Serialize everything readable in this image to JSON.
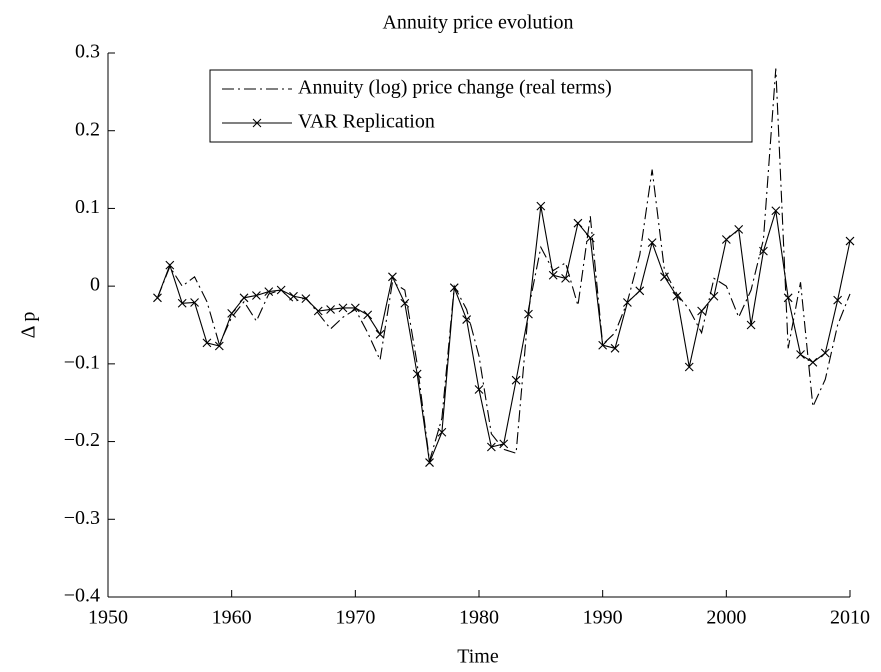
{
  "chart_data": {
    "type": "line",
    "title": "Annuity price evolution",
    "x_label": "Time",
    "y_label": "Δ p",
    "x": [
      1954,
      1955,
      1956,
      1957,
      1958,
      1959,
      1960,
      1961,
      1962,
      1963,
      1964,
      1965,
      1966,
      1967,
      1968,
      1969,
      1970,
      1971,
      1972,
      1973,
      1974,
      1975,
      1976,
      1977,
      1978,
      1979,
      1980,
      1981,
      1982,
      1983,
      1984,
      1985,
      1986,
      1987,
      1988,
      1989,
      1990,
      1991,
      1992,
      1993,
      1994,
      1995,
      1996,
      1997,
      1998,
      1999,
      2000,
      2001,
      2002,
      2003,
      2004,
      2005,
      2006,
      2007,
      2008,
      2009,
      2010
    ],
    "series": [
      {
        "name": "Annuity (log) price change (real terms)",
        "color": "#000000",
        "dash": "dashdot",
        "marker": "none",
        "values": [
          -0.015,
          0.025,
          0.0,
          0.012,
          -0.02,
          -0.075,
          -0.04,
          -0.02,
          -0.045,
          -0.01,
          -0.005,
          -0.02,
          -0.015,
          -0.035,
          -0.055,
          -0.04,
          -0.03,
          -0.06,
          -0.095,
          0.005,
          -0.005,
          -0.1,
          -0.225,
          -0.17,
          0.0,
          -0.03,
          -0.09,
          -0.19,
          -0.21,
          -0.215,
          -0.03,
          0.05,
          0.02,
          0.03,
          -0.025,
          0.09,
          -0.075,
          -0.06,
          -0.02,
          0.04,
          0.15,
          0.02,
          -0.01,
          -0.03,
          -0.06,
          0.01,
          0.0,
          -0.04,
          -0.005,
          0.06,
          0.28,
          -0.08,
          0.005,
          -0.155,
          -0.12,
          -0.05,
          -0.01
        ]
      },
      {
        "name": "VAR Replication",
        "color": "#000000",
        "dash": "solid",
        "marker": "x",
        "values": [
          -0.015,
          0.027,
          -0.022,
          -0.021,
          -0.073,
          -0.077,
          -0.035,
          -0.015,
          -0.012,
          -0.007,
          -0.005,
          -0.013,
          -0.016,
          -0.032,
          -0.03,
          -0.028,
          -0.028,
          -0.037,
          -0.062,
          0.012,
          -0.022,
          -0.113,
          -0.227,
          -0.188,
          -0.002,
          -0.043,
          -0.133,
          -0.207,
          -0.203,
          -0.121,
          -0.036,
          0.103,
          0.014,
          0.01,
          0.081,
          0.062,
          -0.076,
          -0.08,
          -0.021,
          -0.006,
          0.056,
          0.012,
          -0.013,
          -0.104,
          -0.032,
          -0.013,
          0.06,
          0.073,
          -0.05,
          0.045,
          0.097,
          -0.015,
          -0.088,
          -0.098,
          -0.086,
          -0.018,
          0.058
        ]
      }
    ],
    "xlim": [
      1950,
      2010
    ],
    "xticks": [
      1950,
      1960,
      1970,
      1980,
      1990,
      2000,
      2010
    ],
    "ylim": [
      -0.4,
      0.3
    ],
    "yticks": [
      {
        "value": -0.4,
        "label": "−0.4"
      },
      {
        "value": -0.3,
        "label": "−0.3"
      },
      {
        "value": -0.2,
        "label": "−0.2"
      },
      {
        "value": -0.1,
        "label": "−0.1"
      },
      0,
      0.1,
      0.2,
      0.3
    ],
    "grid": false,
    "legend": "top"
  }
}
